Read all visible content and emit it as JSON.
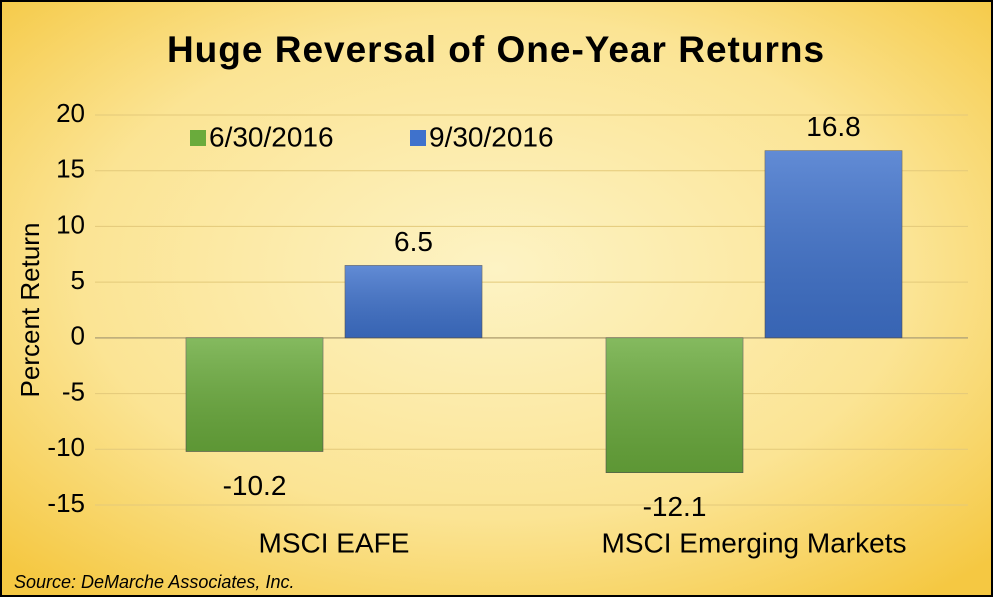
{
  "chart_data": {
    "type": "bar",
    "title": "Huge Reversal of One-Year Returns",
    "ylabel": "Percent Return",
    "categories": [
      "MSCI EAFE",
      "MSCI Emerging Markets"
    ],
    "series": [
      {
        "name": "6/30/2016",
        "color": "#6aab3c",
        "values": [
          -10.2,
          -12.1
        ]
      },
      {
        "name": "9/30/2016",
        "color": "#3f72cc",
        "values": [
          6.5,
          16.8
        ]
      }
    ],
    "ylim": [
      -15,
      20
    ],
    "yticks": [
      -15,
      -10,
      -5,
      0,
      5,
      10,
      15,
      20
    ],
    "grid": true,
    "legend": "top",
    "source": "Source:  DeMarche Associates, Inc."
  }
}
